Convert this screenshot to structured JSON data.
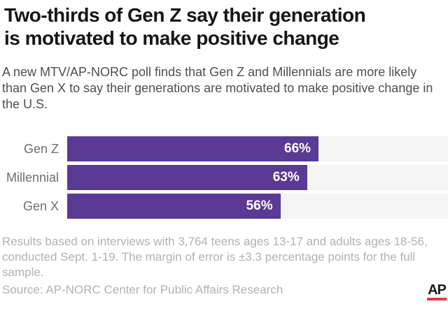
{
  "header": {
    "title_lines": [
      "Two-thirds of Gen Z say their generation",
      "is motivated to make positive change"
    ],
    "subtitle": "A new MTV/AP-NORC poll finds that Gen Z and Millennials are more likely than Gen X to say their generations are motivated to make positive change in the U.S."
  },
  "chart_data": {
    "type": "bar",
    "orientation": "horizontal",
    "title": "Two-thirds of Gen Z say their generation is motivated to make positive change",
    "categories": [
      "Gen Z",
      "Millennial",
      "Gen X"
    ],
    "values": [
      66,
      63,
      56
    ],
    "value_labels": [
      "66%",
      "63%",
      "56%"
    ],
    "xlabel": "",
    "ylabel": "",
    "xlim": [
      0,
      100
    ],
    "grid": false,
    "legend": "none",
    "bar_color": "#5b3a95",
    "track_color": "#f5f5f5",
    "value_label_color": "#ffffff",
    "category_label_color": "#6f6f6f"
  },
  "footer": {
    "note": "Results based on interviews with 3,764 teens ages 13-17 and adults ages 18-56, conducted Sept. 1-19. The margin of error is ±3.3 percentage points for the full sample.",
    "source": "Source: AP-NORC Center for Public Affairs Research",
    "logo_text": "AP"
  },
  "colors": {
    "title": "#161616",
    "subtitle": "#4f4f4f",
    "note": "#b2b2b2",
    "logo_bar_red": "#e23a4f",
    "background": "#ffffff"
  }
}
